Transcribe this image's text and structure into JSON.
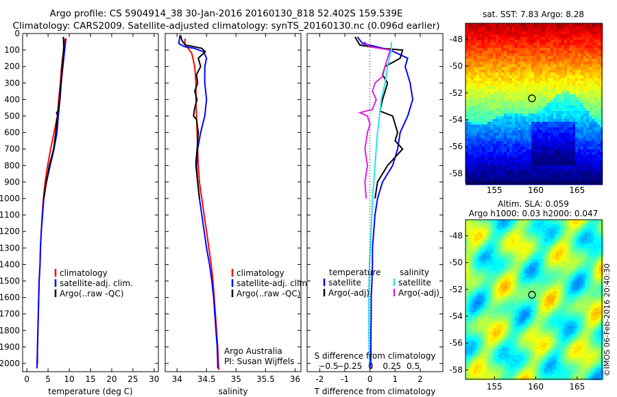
{
  "header": {
    "line1": "Argo profile: CS 5904914_38 30-Jan-2016 20160130_818 52.402S 159.539E",
    "line2": "Climatology: CARS2009. Satellite-adjusted climatology: synTS_20160130.nc (0.096d earlier)"
  },
  "colors": {
    "climatology": "#ff0000",
    "satellite": "#0000ff",
    "argo": "#000000",
    "salinity_sat": "#22e5e5",
    "salinity_argo": "#e020e0"
  },
  "chart_data": [
    {
      "type": "line",
      "id": "temperature",
      "xlabel": "temperature (deg C)",
      "ylabel": "",
      "xlim": [
        -1,
        31
      ],
      "ylim": [
        2050,
        0
      ],
      "xticks": [
        0,
        5,
        10,
        15,
        20,
        25,
        30
      ],
      "yticks": [
        0,
        100,
        200,
        300,
        400,
        500,
        600,
        700,
        800,
        900,
        1000,
        1100,
        1200,
        1300,
        1400,
        1500,
        1600,
        1700,
        1800,
        1900,
        2000
      ],
      "legend": [
        "climatology",
        "satellite-adj. clim.",
        "Argo(..raw -QC)"
      ],
      "series": [
        {
          "name": "climatology",
          "color": "#ff0000",
          "points": [
            [
              9,
              30
            ],
            [
              8.8,
              80
            ],
            [
              8.4,
              150
            ],
            [
              8.1,
              220
            ],
            [
              7.9,
              300
            ],
            [
              7.5,
              400
            ],
            [
              7.2,
              500
            ],
            [
              6.4,
              600
            ],
            [
              5.6,
              700
            ],
            [
              4.9,
              800
            ],
            [
              4.3,
              900
            ],
            [
              3.9,
              1000
            ],
            [
              3.6,
              1100
            ],
            [
              3.4,
              1200
            ],
            [
              3.2,
              1300
            ],
            [
              3.1,
              1400
            ],
            [
              2.9,
              1500
            ],
            [
              2.8,
              1600
            ],
            [
              2.7,
              1700
            ],
            [
              2.6,
              1800
            ],
            [
              2.5,
              1900
            ],
            [
              2.5,
              2000
            ]
          ]
        },
        {
          "name": "satellite-adj. clim.",
          "color": "#0000ff",
          "points": [
            [
              9.2,
              30
            ],
            [
              9,
              80
            ],
            [
              8.7,
              150
            ],
            [
              8.4,
              220
            ],
            [
              8.1,
              300
            ],
            [
              7.8,
              400
            ],
            [
              7.4,
              500
            ],
            [
              7.1,
              600
            ],
            [
              6.4,
              700
            ],
            [
              5.5,
              800
            ],
            [
              4.6,
              900
            ],
            [
              4,
              1000
            ],
            [
              3.7,
              1100
            ],
            [
              3.4,
              1200
            ],
            [
              3.2,
              1300
            ],
            [
              3.1,
              1400
            ],
            [
              2.9,
              1500
            ],
            [
              2.8,
              1600
            ],
            [
              2.7,
              1700
            ],
            [
              2.6,
              1800
            ],
            [
              2.5,
              1900
            ],
            [
              2.4,
              2000
            ],
            [
              2.4,
              2030
            ]
          ]
        },
        {
          "name": "Argo(..raw -QC)",
          "color": "#000000",
          "points": [
            [
              8.6,
              20
            ],
            [
              8.7,
              80
            ],
            [
              8.5,
              150
            ],
            [
              8.3,
              220
            ],
            [
              8,
              300
            ],
            [
              7.7,
              400
            ],
            [
              7.4,
              470
            ],
            [
              7,
              480
            ],
            [
              7.3,
              500
            ],
            [
              7.1,
              520
            ],
            [
              6.8,
              600
            ],
            [
              6.3,
              700
            ],
            [
              5.3,
              800
            ],
            [
              4.6,
              900
            ],
            [
              4,
              1000
            ]
          ]
        }
      ]
    },
    {
      "type": "line",
      "id": "salinity",
      "xlabel": "salinity",
      "ylabel": "",
      "xlim": [
        33.8,
        36.1
      ],
      "ylim": [
        2050,
        0
      ],
      "xticks": [
        34,
        34.5,
        35,
        35.5,
        36
      ],
      "legend": [
        "climatology",
        "satellite-adj. clim.",
        "Argo(..raw -QC)"
      ],
      "annotation": [
        "Argo Australia",
        "PI: Susan Wijffels"
      ],
      "series": [
        {
          "name": "climatology",
          "color": "#ff0000",
          "points": [
            [
              34.14,
              30
            ],
            [
              34.13,
              60
            ],
            [
              34.17,
              80
            ],
            [
              34.25,
              120
            ],
            [
              34.3,
              200
            ],
            [
              34.32,
              300
            ],
            [
              34.32,
              400
            ],
            [
              34.33,
              500
            ],
            [
              34.34,
              600
            ],
            [
              34.35,
              700
            ],
            [
              34.36,
              800
            ],
            [
              34.38,
              900
            ],
            [
              34.42,
              1000
            ],
            [
              34.46,
              1100
            ],
            [
              34.5,
              1200
            ],
            [
              34.54,
              1300
            ],
            [
              34.58,
              1400
            ],
            [
              34.61,
              1500
            ],
            [
              34.63,
              1600
            ],
            [
              34.65,
              1700
            ],
            [
              34.67,
              1800
            ],
            [
              34.69,
              1900
            ],
            [
              34.7,
              2000
            ],
            [
              34.71,
              2040
            ]
          ]
        },
        {
          "name": "satellite-adj. clim.",
          "color": "#0000ff",
          "points": [
            [
              34.05,
              10
            ],
            [
              34.03,
              60
            ],
            [
              34.13,
              80
            ],
            [
              34.3,
              90
            ],
            [
              34.45,
              110
            ],
            [
              34.5,
              150
            ],
            [
              34.47,
              200
            ],
            [
              34.47,
              300
            ],
            [
              34.5,
              400
            ],
            [
              34.47,
              500
            ],
            [
              34.4,
              600
            ],
            [
              34.35,
              700
            ],
            [
              34.33,
              800
            ],
            [
              34.35,
              900
            ],
            [
              34.38,
              1000
            ],
            [
              34.42,
              1100
            ],
            [
              34.46,
              1200
            ],
            [
              34.5,
              1300
            ],
            [
              34.55,
              1400
            ],
            [
              34.59,
              1500
            ],
            [
              34.62,
              1600
            ],
            [
              34.64,
              1700
            ],
            [
              34.66,
              1800
            ],
            [
              34.68,
              1900
            ],
            [
              34.69,
              2000
            ],
            [
              34.69,
              2030
            ]
          ]
        },
        {
          "name": "Argo(..raw -QC)",
          "color": "#000000",
          "points": [
            [
              34.06,
              10
            ],
            [
              34.08,
              40
            ],
            [
              34.14,
              70
            ],
            [
              34.3,
              80
            ],
            [
              34.42,
              90
            ],
            [
              34.48,
              110
            ],
            [
              34.36,
              150
            ],
            [
              34.4,
              200
            ],
            [
              34.33,
              250
            ],
            [
              34.35,
              300
            ],
            [
              34.3,
              350
            ],
            [
              34.34,
              400
            ],
            [
              34.3,
              450
            ],
            [
              34.28,
              500
            ],
            [
              34.33,
              520
            ],
            [
              34.36,
              600
            ],
            [
              34.34,
              700
            ],
            [
              34.32,
              780
            ],
            [
              34.32,
              800
            ],
            [
              34.35,
              900
            ],
            [
              34.38,
              1000
            ]
          ]
        }
      ]
    },
    {
      "type": "line",
      "id": "difference",
      "xlabel": "T difference from climatology",
      "xlabel_top": "S difference from climatology",
      "ylabel": "",
      "xlim": [
        -2.5,
        2.9
      ],
      "ylim": [
        2050,
        0
      ],
      "xticks": [
        -2,
        -1,
        0,
        1,
        2
      ],
      "xticks_top": [
        -0.5,
        -0.25,
        0,
        0.25,
        0.5
      ],
      "xticks_top_labels": [
        "−0.5",
        "−0.25",
        "0",
        "0.25",
        "0.5"
      ],
      "legend_temperature": [
        "temperature",
        "satellite",
        "Argo(-adj)"
      ],
      "legend_salinity": [
        "salinity",
        "satellite",
        "Argo(-adj)"
      ],
      "series": [
        {
          "name": "T satellite",
          "color": "#0000ff",
          "points": [
            [
              -0.5,
              20
            ],
            [
              -0.3,
              60
            ],
            [
              0.8,
              100
            ],
            [
              1.5,
              150
            ],
            [
              1.4,
              200
            ],
            [
              1.6,
              300
            ],
            [
              1.7,
              400
            ],
            [
              1.5,
              500
            ],
            [
              1.2,
              600
            ],
            [
              1.1,
              700
            ],
            [
              0.9,
              800
            ],
            [
              0.5,
              900
            ],
            [
              0.3,
              1000
            ],
            [
              0.2,
              1100
            ],
            [
              0.15,
              1200
            ],
            [
              0.1,
              1300
            ],
            [
              0.1,
              1400
            ],
            [
              0.08,
              1500
            ],
            [
              0.05,
              1600
            ],
            [
              0.05,
              1700
            ],
            [
              0.04,
              1800
            ],
            [
              0.04,
              1900
            ],
            [
              0.03,
              2000
            ],
            [
              0.03,
              2030
            ]
          ]
        },
        {
          "name": "T Argo(-adj)",
          "color": "#000000",
          "points": [
            [
              -0.6,
              20
            ],
            [
              -0.4,
              70
            ],
            [
              0.5,
              90
            ],
            [
              1.3,
              100
            ],
            [
              1.2,
              150
            ],
            [
              0.6,
              200
            ],
            [
              0.5,
              250
            ],
            [
              0.7,
              300
            ],
            [
              0.5,
              400
            ],
            [
              0.4,
              470
            ],
            [
              0.9,
              500
            ],
            [
              1.1,
              600
            ],
            [
              1.0,
              650
            ],
            [
              1.3,
              700
            ],
            [
              0.7,
              800
            ],
            [
              0.5,
              850
            ],
            [
              0.3,
              900
            ],
            [
              0.2,
              1000
            ]
          ]
        },
        {
          "name": "S satellite",
          "color": "#22e5e5",
          "points": [
            [
              0.85,
              50
            ],
            [
              0.85,
              100
            ],
            [
              0.7,
              200
            ],
            [
              0.6,
              300
            ],
            [
              0.45,
              400
            ],
            [
              0.38,
              500
            ],
            [
              0.3,
              600
            ],
            [
              0.25,
              700
            ],
            [
              0.2,
              800
            ],
            [
              0.15,
              900
            ],
            [
              0.1,
              1000
            ],
            [
              0.05,
              1200
            ],
            [
              -0.02,
              1400
            ],
            [
              -0.05,
              1600
            ],
            [
              -0.05,
              1800
            ],
            [
              -0.02,
              2000
            ]
          ]
        },
        {
          "name": "S Argo(-adj)",
          "color": "#e020e0",
          "points": [
            [
              -0.25,
              50
            ],
            [
              0,
              80
            ],
            [
              0.8,
              100
            ],
            [
              0.6,
              200
            ],
            [
              0.5,
              260
            ],
            [
              0.2,
              300
            ],
            [
              0.1,
              350
            ],
            [
              0.25,
              400
            ],
            [
              0.1,
              460
            ],
            [
              -0.4,
              480
            ],
            [
              -0.1,
              500
            ],
            [
              0,
              550
            ],
            [
              -0.1,
              600
            ],
            [
              -0.2,
              700
            ],
            [
              -0.1,
              800
            ],
            [
              -0.2,
              900
            ],
            [
              -0.15,
              1000
            ]
          ]
        }
      ]
    },
    {
      "type": "heatmap",
      "id": "sst-map",
      "title": "sat. SST: 7.83 Argo: 8.28",
      "xlim": [
        151.5,
        168
      ],
      "ylim": [
        -58.7,
        -46.8
      ],
      "xticks": [
        155,
        160,
        165
      ],
      "yticks": [
        -48,
        -50,
        -52,
        -54,
        -56,
        -58
      ],
      "marker": {
        "lon": 159.539,
        "lat": -52.402
      }
    },
    {
      "type": "heatmap",
      "id": "sla-map",
      "title_line1": "Altim. SLA: 0.059",
      "title_line2": "Argo h1000: 0.03 h2000: 0.047",
      "xlim": [
        151.5,
        168
      ],
      "ylim": [
        -58.7,
        -46.8
      ],
      "xticks": [
        155,
        160,
        165
      ],
      "yticks": [
        -48,
        -50,
        -52,
        -54,
        -56,
        -58
      ],
      "marker": {
        "lon": 159.539,
        "lat": -52.402
      }
    }
  ],
  "footer": {
    "credit": "©IMOS 06-Feb-2016 20:40:30"
  }
}
